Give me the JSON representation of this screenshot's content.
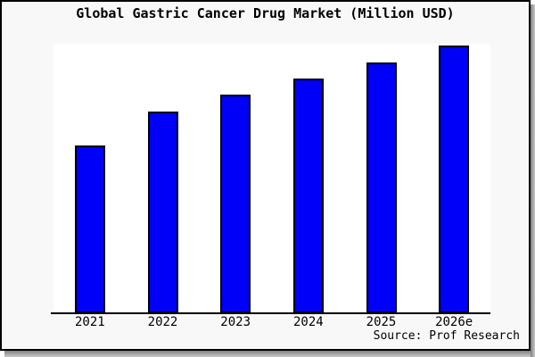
{
  "title": "Global Gastric Cancer Drug Market (Million USD)",
  "source": "Source: Prof Research",
  "colors": {
    "page_bg": "#f8f8f8",
    "plot_bg": "#ffffff",
    "bar_fill": "#0000f8",
    "bar_border": "#000000",
    "axis": "#000000",
    "text": "#000000",
    "frame_border": "#000000",
    "shadow": "#808080"
  },
  "chart_data": {
    "type": "bar",
    "title": "Global Gastric Cancer Drug Market (Million USD)",
    "categories": [
      "2021",
      "2022",
      "2023",
      "2024",
      "2025",
      "2026e"
    ],
    "values": [
      62.8,
      75.2,
      81.6,
      87.8,
      93.8,
      100
    ],
    "values_note": "Relative bar heights (% of tallest bar, 2026e = 100); chart displays no y-axis scale or value labels",
    "xlabel": "",
    "ylabel": "",
    "ylim": [
      0,
      100.7
    ],
    "grid": false,
    "legend": false,
    "bar_color": "#0000f8",
    "bar_border_color": "#000000",
    "source": "Source: Prof Research"
  }
}
